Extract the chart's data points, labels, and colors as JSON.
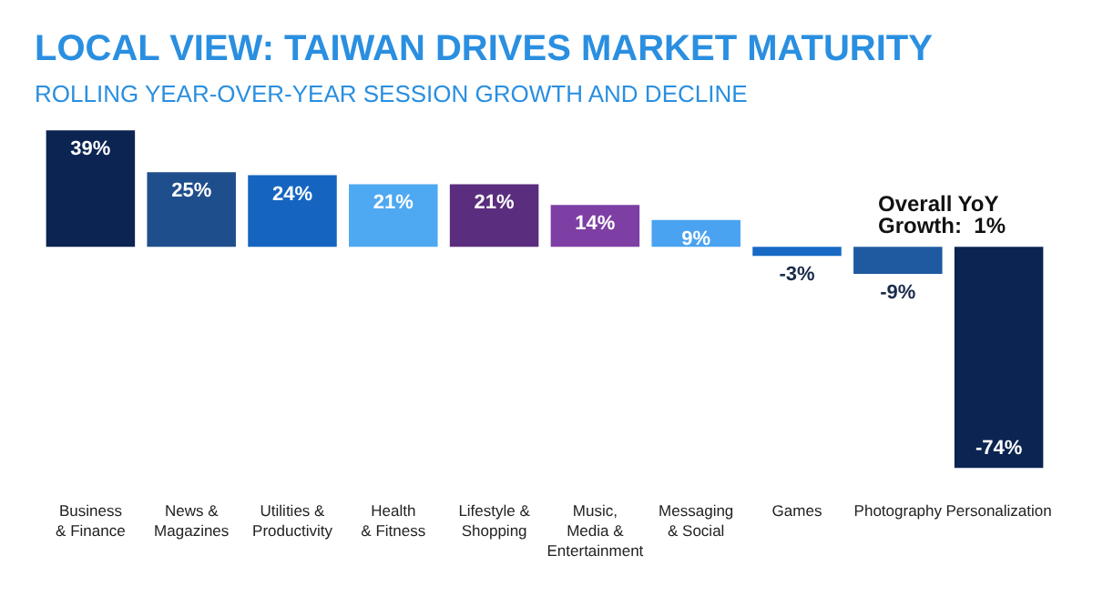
{
  "chart_data": {
    "type": "bar",
    "title": "LOCAL VIEW: TAIWAN DRIVES MARKET MATURITY",
    "subtitle": "ROLLING YEAR-OVER-YEAR SESSION GROWTH AND DECLINE",
    "categories": [
      "Business\n& Finance",
      "News &\nMagazines",
      "Utilities &\nProductivity",
      "Health\n& Fitness",
      "Lifestyle &\nShopping",
      "Music,\nMedia &\nEntertainment",
      "Messaging\n& Social",
      "Games",
      "Photography",
      "Personalization"
    ],
    "values": [
      39,
      25,
      24,
      21,
      21,
      14,
      9,
      -3,
      -9,
      -74
    ],
    "colors": [
      "#0b2452",
      "#1f4e8c",
      "#1565c0",
      "#4ea8f2",
      "#5b2d7e",
      "#7d3fa3",
      "#4aa3f0",
      "#1769c4",
      "#1f5aa0",
      "#0b2452"
    ],
    "value_labels": [
      "39%",
      "25%",
      "24%",
      "21%",
      "21%",
      "14%",
      "9%",
      "-3%",
      "-9%",
      "-74%"
    ],
    "annotations": [
      "Overall YoY\nGrowth:  1%"
    ]
  }
}
